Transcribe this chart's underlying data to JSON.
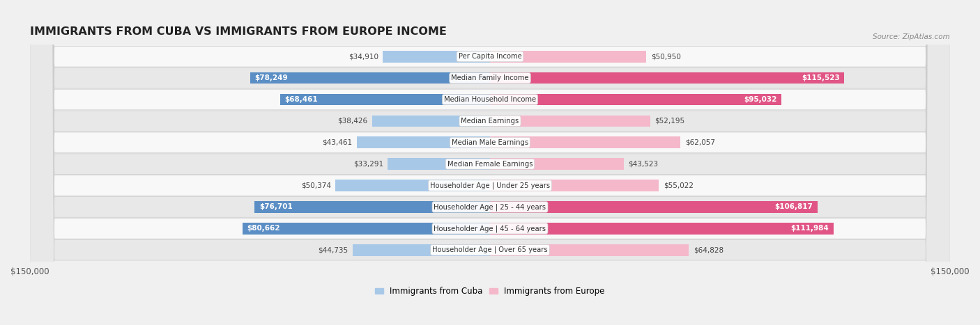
{
  "title": "IMMIGRANTS FROM CUBA VS IMMIGRANTS FROM EUROPE INCOME",
  "source": "Source: ZipAtlas.com",
  "categories": [
    "Per Capita Income",
    "Median Family Income",
    "Median Household Income",
    "Median Earnings",
    "Median Male Earnings",
    "Median Female Earnings",
    "Householder Age | Under 25 years",
    "Householder Age | 25 - 44 years",
    "Householder Age | 45 - 64 years",
    "Householder Age | Over 65 years"
  ],
  "cuba_values": [
    34910,
    78249,
    68461,
    38426,
    43461,
    33291,
    50374,
    76701,
    80662,
    44735
  ],
  "europe_values": [
    50950,
    115523,
    95032,
    52195,
    62057,
    43523,
    55022,
    106817,
    111984,
    64828
  ],
  "cuba_color_light": "#a8c8e8",
  "cuba_color_dark": "#5b8ec4",
  "europe_color_light": "#f5b8cb",
  "europe_color_dark": "#e05585",
  "max_value": 150000,
  "bg_color": "#f0f0f0",
  "row_bg_white": "#f8f8f8",
  "row_bg_gray": "#e8e8e8",
  "legend_cuba": "Immigrants from Cuba",
  "legend_europe": "Immigrants from Europe",
  "cuba_threshold": 60000,
  "europe_threshold": 85000
}
